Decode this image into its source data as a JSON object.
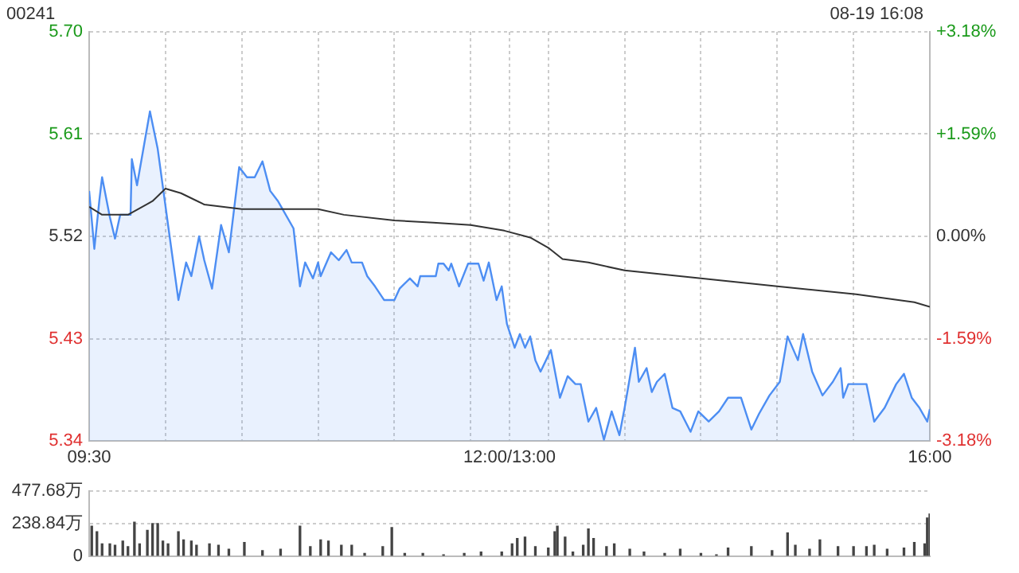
{
  "chart_data": [
    {
      "type": "area",
      "title": "00241",
      "annotations": [
        "08-19 16:08"
      ],
      "xlim": [
        9.5,
        16
      ],
      "xticks": [
        {
          "value": 9.5,
          "label": "09:30"
        },
        {
          "value": 10.09,
          "label": null
        },
        {
          "value": 10.68,
          "label": null
        },
        {
          "value": 11.27,
          "label": null
        },
        {
          "value": 11.86,
          "label": null
        },
        {
          "value": 12.45,
          "label": null
        },
        {
          "value": 12.75,
          "label": "12:00/13:00"
        },
        {
          "value": 13.05,
          "label": null
        },
        {
          "value": 13.64,
          "label": null
        },
        {
          "value": 14.23,
          "label": null
        },
        {
          "value": 14.82,
          "label": null
        },
        {
          "value": 15.41,
          "label": null
        },
        {
          "value": 16,
          "label": "16:00"
        }
      ],
      "ylim": [
        5.34,
        5.7
      ],
      "yticks": [
        {
          "value": 5.34,
          "label": "5.34"
        },
        {
          "value": 5.43,
          "label": "5.43"
        },
        {
          "value": 5.52,
          "label": "5.52"
        },
        {
          "value": 5.61,
          "label": "5.61"
        },
        {
          "value": 5.7,
          "label": "5.70"
        }
      ],
      "y2lim": [
        -3.18,
        3.18
      ],
      "y2ticks": [
        {
          "value": -3.18,
          "label": "-3.18%"
        },
        {
          "value": -1.59,
          "label": "-1.59%"
        },
        {
          "value": 0,
          "label": "0.00%"
        },
        {
          "value": 1.59,
          "label": "+1.59%"
        },
        {
          "value": 3.18,
          "label": "+3.18%"
        }
      ],
      "grid": true,
      "series": [
        {
          "type": "area",
          "color": "#4d8ef3",
          "x": [
            9.5,
            9.54,
            9.58,
            9.6,
            9.66,
            9.7,
            9.74,
            9.82,
            9.83,
            9.87,
            9.93,
            9.97,
            10.03,
            10.11,
            10.19,
            10.25,
            10.29,
            10.35,
            10.39,
            10.45,
            10.52,
            10.58,
            10.66,
            10.72,
            10.78,
            10.84,
            10.9,
            10.96,
            11.08,
            11.13,
            11.17,
            11.23,
            11.27,
            11.29,
            11.37,
            11.43,
            11.49,
            11.53,
            11.61,
            11.65,
            11.71,
            11.78,
            11.86,
            11.9,
            11.98,
            12.04,
            12.06,
            12.18,
            12.2,
            12.24,
            12.28,
            12.3,
            12.36,
            12.43,
            12.51,
            12.55,
            12.59,
            12.65,
            12.69,
            12.73,
            12.79,
            12.83,
            12.87,
            12.91,
            12.95,
            12.99,
            13.07,
            13.14,
            13.2,
            13.26,
            13.3,
            13.36,
            13.42,
            13.48,
            13.54,
            13.6,
            13.64,
            13.72,
            13.75,
            13.81,
            13.85,
            13.89,
            13.95,
            14.01,
            14.07,
            14.15,
            14.21,
            14.29,
            14.37,
            14.44,
            14.54,
            14.62,
            14.68,
            14.76,
            14.84,
            14.9,
            14.98,
            15.02,
            15.09,
            15.17,
            15.25,
            15.31,
            15.33,
            15.37,
            15.51,
            15.57,
            15.65,
            15.74,
            15.8,
            15.86,
            15.92,
            15.98,
            16
          ],
          "values": [
            5.56,
            5.509,
            5.553,
            5.572,
            5.537,
            5.518,
            5.539,
            5.539,
            5.588,
            5.565,
            5.604,
            5.63,
            5.597,
            5.53,
            5.464,
            5.497,
            5.485,
            5.52,
            5.499,
            5.474,
            5.53,
            5.506,
            5.581,
            5.572,
            5.572,
            5.586,
            5.56,
            5.551,
            5.527,
            5.476,
            5.497,
            5.483,
            5.497,
            5.485,
            5.506,
            5.499,
            5.508,
            5.497,
            5.497,
            5.485,
            5.476,
            5.464,
            5.464,
            5.474,
            5.483,
            5.476,
            5.485,
            5.485,
            5.496,
            5.496,
            5.49,
            5.496,
            5.476,
            5.496,
            5.496,
            5.481,
            5.497,
            5.464,
            5.476,
            5.443,
            5.422,
            5.434,
            5.422,
            5.432,
            5.411,
            5.401,
            5.42,
            5.378,
            5.397,
            5.39,
            5.39,
            5.357,
            5.369,
            5.341,
            5.366,
            5.345,
            5.369,
            5.422,
            5.392,
            5.404,
            5.383,
            5.392,
            5.399,
            5.369,
            5.366,
            5.348,
            5.366,
            5.357,
            5.366,
            5.378,
            5.378,
            5.35,
            5.364,
            5.38,
            5.392,
            5.432,
            5.411,
            5.434,
            5.401,
            5.38,
            5.392,
            5.404,
            5.378,
            5.39,
            5.39,
            5.357,
            5.369,
            5.39,
            5.399,
            5.378,
            5.369,
            5.357,
            5.368
          ]
        },
        {
          "type": "line",
          "color": "#333333",
          "x": [
            9.5,
            9.6,
            9.8,
            9.99,
            10.09,
            10.21,
            10.39,
            10.68,
            11.27,
            11.47,
            11.86,
            12.16,
            12.45,
            12.71,
            12.91,
            13.05,
            13.16,
            13.36,
            13.64,
            14.23,
            14.82,
            15.43,
            15.88,
            16
          ],
          "values": [
            5.546,
            5.539,
            5.539,
            5.551,
            5.562,
            5.558,
            5.548,
            5.544,
            5.544,
            5.539,
            5.534,
            5.532,
            5.53,
            5.525,
            5.519,
            5.51,
            5.5,
            5.497,
            5.49,
            5.483,
            5.476,
            5.469,
            5.462,
            5.458
          ]
        }
      ]
    },
    {
      "type": "bar",
      "color": "#444444",
      "tick_labels": "y",
      "grid": "y",
      "xlim": [
        9.5,
        16
      ],
      "ylim": [
        0,
        477.68
      ],
      "yticks": [
        {
          "value": 0,
          "label": "0"
        },
        {
          "value": 238.84,
          "label": "238.84万"
        },
        {
          "value": 477.68,
          "label": "477.68万"
        }
      ],
      "x": [
        9.52,
        9.56,
        9.6,
        9.66,
        9.7,
        9.76,
        9.8,
        9.85,
        9.89,
        9.95,
        9.99,
        10.03,
        10.07,
        10.11,
        10.19,
        10.23,
        10.29,
        10.33,
        10.43,
        10.5,
        10.58,
        10.7,
        10.84,
        10.98,
        11.13,
        11.21,
        11.29,
        11.35,
        11.45,
        11.53,
        11.63,
        11.77,
        11.84,
        11.94,
        12.08,
        12.24,
        12.4,
        12.53,
        12.69,
        12.77,
        12.81,
        12.87,
        12.95,
        13.05,
        13.1,
        13.12,
        13.18,
        13.24,
        13.32,
        13.36,
        13.4,
        13.5,
        13.56,
        13.68,
        13.79,
        13.95,
        14.07,
        14.23,
        14.35,
        14.44,
        14.62,
        14.78,
        14.9,
        14.96,
        15.07,
        15.15,
        15.29,
        15.41,
        15.51,
        15.57,
        15.67,
        15.8,
        15.88,
        15.96,
        15.98,
        16
      ],
      "values": [
        220,
        180,
        90,
        90,
        80,
        110,
        70,
        250,
        90,
        190,
        240,
        240,
        110,
        90,
        180,
        120,
        110,
        80,
        90,
        80,
        50,
        100,
        40,
        50,
        220,
        70,
        120,
        110,
        80,
        80,
        20,
        70,
        210,
        20,
        20,
        10,
        20,
        30,
        30,
        90,
        130,
        140,
        70,
        60,
        180,
        220,
        140,
        30,
        80,
        200,
        130,
        70,
        90,
        50,
        30,
        20,
        50,
        20,
        10,
        60,
        70,
        40,
        170,
        80,
        50,
        120,
        70,
        70,
        70,
        80,
        50,
        60,
        100,
        90,
        280,
        310
      ]
    }
  ]
}
